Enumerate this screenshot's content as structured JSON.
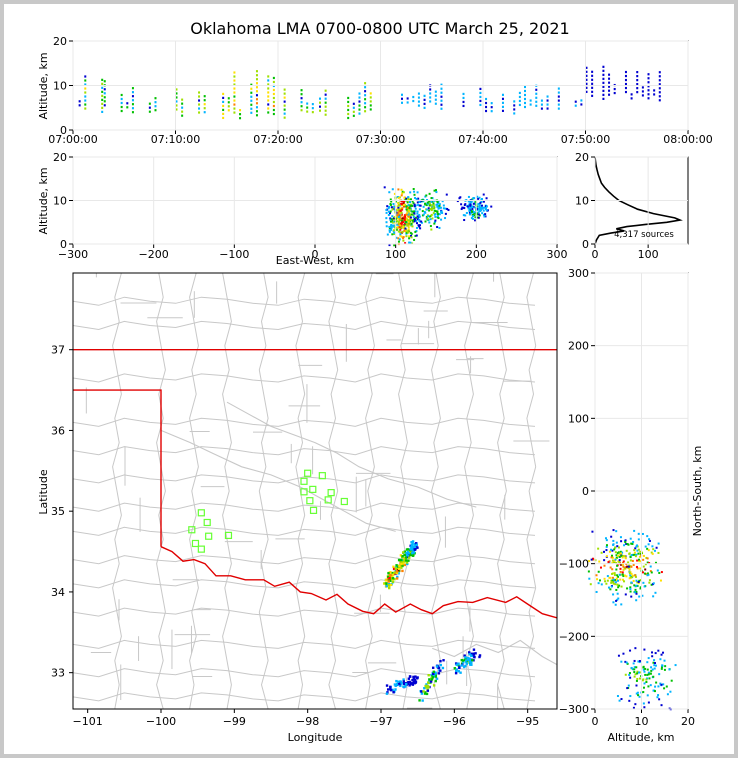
{
  "title": "Oklahoma LMA 0700-0800 UTC March 25, 2021",
  "colors": {
    "border_white": "#c8c8c8",
    "state_line": "#e00000",
    "county_line": "#c8c8c8",
    "station": "#66ff33",
    "grid": "#e8e8e8",
    "density_scale": [
      "#0000d0",
      "#00b4ff",
      "#00c000",
      "#a0e000",
      "#ffe000",
      "#ff8000",
      "#ff0000",
      "#800000"
    ]
  },
  "chart_data": [
    {
      "panel": "time-height",
      "type": "heatmap",
      "ylabel": "Altitude, km",
      "ylim": [
        0,
        20
      ],
      "yticks": [
        "0",
        "10",
        "20"
      ],
      "xlim": [
        "07:00:00",
        "08:00:00"
      ],
      "xticks": [
        "07:00:00",
        "07:10:00",
        "07:20:00",
        "07:30:00",
        "07:40:00",
        "07:50:00",
        "08:00:00"
      ],
      "activity": [
        {
          "t0": 0,
          "t1": 3,
          "alt": [
            3,
            11
          ],
          "level": 3
        },
        {
          "t0": 3,
          "t1": 8,
          "alt": [
            3,
            10
          ],
          "level": 2
        },
        {
          "t0": 10,
          "t1": 14,
          "alt": [
            2,
            12
          ],
          "level": 3
        },
        {
          "t0": 14,
          "t1": 20,
          "alt": [
            2,
            13
          ],
          "level": 4
        },
        {
          "t0": 20,
          "t1": 24,
          "alt": [
            2,
            12
          ],
          "level": 3
        },
        {
          "t0": 24,
          "t1": 30,
          "alt": [
            2,
            11
          ],
          "level": 3
        },
        {
          "t0": 32,
          "t1": 36,
          "alt": [
            4,
            9
          ],
          "level": 1
        },
        {
          "t0": 38,
          "t1": 44,
          "alt": [
            3,
            8
          ],
          "level": 1
        },
        {
          "t0": 44,
          "t1": 50,
          "alt": [
            4,
            9
          ],
          "level": 1
        },
        {
          "t0": 50,
          "t1": 58,
          "alt": [
            6,
            14
          ],
          "level": 0
        }
      ]
    },
    {
      "panel": "east-west-height",
      "type": "heatmap",
      "xlabel": "East-West, km",
      "ylabel": "Altitude, km",
      "xlim": [
        -300,
        300
      ],
      "ylim": [
        0,
        20
      ],
      "xticks": [
        "-300",
        "-200",
        "-100",
        "0",
        "100",
        "200",
        "300"
      ],
      "yticks": [
        "0",
        "10",
        "20"
      ],
      "cells": [
        {
          "x": [
            90,
            125
          ],
          "alt": [
            2,
            13
          ],
          "level": 6
        },
        {
          "x": [
            125,
            160
          ],
          "alt": [
            5,
            13
          ],
          "level": 3
        },
        {
          "x": [
            180,
            215
          ],
          "alt": [
            7,
            12
          ],
          "level": 2
        }
      ]
    },
    {
      "panel": "altitude-histogram",
      "type": "line",
      "annotation": "4,317 sources",
      "xlim": [
        0,
        175
      ],
      "ylim": [
        0,
        20
      ],
      "xticks": [
        "0",
        "100"
      ],
      "yticks": [
        "0",
        "10",
        "20"
      ],
      "profile": [
        {
          "alt": 0,
          "count": 0
        },
        {
          "alt": 1,
          "count": 3
        },
        {
          "alt": 2,
          "count": 8
        },
        {
          "alt": 2.5,
          "count": 30
        },
        {
          "alt": 3,
          "count": 55
        },
        {
          "alt": 3.5,
          "count": 40
        },
        {
          "alt": 4,
          "count": 60
        },
        {
          "alt": 4.5,
          "count": 95
        },
        {
          "alt": 5,
          "count": 135
        },
        {
          "alt": 5.5,
          "count": 160
        },
        {
          "alt": 6,
          "count": 150
        },
        {
          "alt": 7,
          "count": 110
        },
        {
          "alt": 8,
          "count": 80
        },
        {
          "alt": 9,
          "count": 62
        },
        {
          "alt": 10,
          "count": 45
        },
        {
          "alt": 11,
          "count": 35
        },
        {
          "alt": 12,
          "count": 26
        },
        {
          "alt": 13,
          "count": 18
        },
        {
          "alt": 14,
          "count": 12
        },
        {
          "alt": 15,
          "count": 9
        },
        {
          "alt": 16,
          "count": 6
        },
        {
          "alt": 17,
          "count": 4
        },
        {
          "alt": 18,
          "count": 2
        },
        {
          "alt": 19,
          "count": 1
        },
        {
          "alt": 20,
          "count": 0
        }
      ]
    },
    {
      "panel": "plan-view",
      "type": "heatmap",
      "xlabel": "Longitude",
      "ylabel": "Latitude",
      "xlim": [
        -101.2,
        -94.6
      ],
      "ylim": [
        32.55,
        37.95
      ],
      "xticks": [
        "-101",
        "-100",
        "-99",
        "-98",
        "-97",
        "-96",
        "-95"
      ],
      "yticks": [
        "33",
        "34",
        "35",
        "36",
        "37"
      ],
      "stations": [
        {
          "lon": -98.0,
          "lat": 35.47
        },
        {
          "lon": -97.8,
          "lat": 35.44
        },
        {
          "lon": -98.05,
          "lat": 35.37
        },
        {
          "lon": -97.93,
          "lat": 35.27
        },
        {
          "lon": -98.05,
          "lat": 35.24
        },
        {
          "lon": -97.68,
          "lat": 35.23
        },
        {
          "lon": -97.72,
          "lat": 35.14
        },
        {
          "lon": -97.97,
          "lat": 35.13
        },
        {
          "lon": -97.5,
          "lat": 35.12
        },
        {
          "lon": -97.92,
          "lat": 35.01
        },
        {
          "lon": -99.45,
          "lat": 34.98
        },
        {
          "lon": -99.37,
          "lat": 34.86
        },
        {
          "lon": -99.58,
          "lat": 34.77
        },
        {
          "lon": -99.35,
          "lat": 34.69
        },
        {
          "lon": -99.08,
          "lat": 34.7
        },
        {
          "lon": -99.53,
          "lat": 34.6
        },
        {
          "lon": -99.45,
          "lat": 34.53
        }
      ],
      "storms": [
        {
          "lon": [
            -96.95,
            -96.55
          ],
          "lat": [
            34.1,
            34.6
          ],
          "level": 6
        },
        {
          "lon": [
            -96.45,
            -96.2
          ],
          "lat": [
            32.7,
            33.15
          ],
          "level": 3
        },
        {
          "lon": [
            -96.0,
            -95.7
          ],
          "lat": [
            33.05,
            33.25
          ],
          "level": 2
        },
        {
          "lon": [
            -96.9,
            -96.55
          ],
          "lat": [
            32.8,
            32.95
          ],
          "level": 1
        }
      ]
    },
    {
      "panel": "height-north-south",
      "type": "heatmap",
      "xlabel": "Altitude, km",
      "ylabel": "North-South, km",
      "xlim": [
        0,
        20
      ],
      "ylim": [
        -300,
        300
      ],
      "xticks": [
        "0",
        "10",
        "20"
      ],
      "yticks": [
        "-300",
        "-200",
        "-100",
        "0",
        "100",
        "200",
        "300"
      ],
      "cells": [
        {
          "alt": [
            1,
            13
          ],
          "y": [
            -140,
            -65
          ],
          "level": 6
        },
        {
          "alt": [
            6,
            16
          ],
          "y": [
            -290,
            -225
          ],
          "level": 3
        }
      ]
    }
  ]
}
